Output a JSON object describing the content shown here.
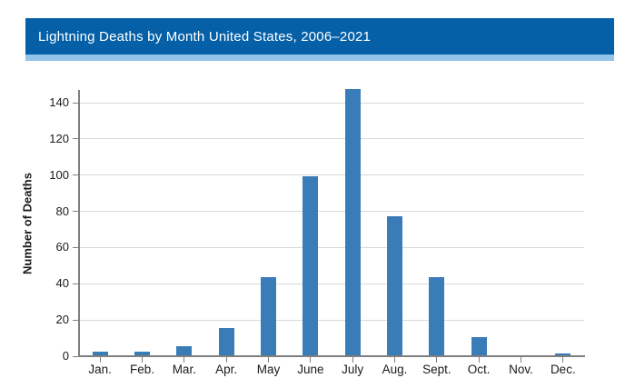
{
  "header": {
    "title": "Lightning Deaths by Month United States, 2006–2021"
  },
  "colors": {
    "header_bg": "#0560a8",
    "header_stripe": "#92c5e8",
    "title_text": "#ffffff",
    "bar_fill": "#3a7cb8",
    "gridline": "#d9d9d9",
    "axis": "#7f7f7f",
    "tick_label": "#1a1a1a"
  },
  "chart_data": {
    "type": "bar",
    "title": "Lightning Deaths by Month United States, 2006–2021",
    "categories": [
      "Jan.",
      "Feb.",
      "Mar.",
      "Apr.",
      "May",
      "June",
      "July",
      "Aug.",
      "Sept.",
      "Oct.",
      "Nov.",
      "Dec."
    ],
    "values": [
      2,
      2,
      5,
      15,
      43,
      99,
      147,
      77,
      43,
      10,
      0,
      1
    ],
    "xlabel": "",
    "ylabel": "Number of Deaths",
    "ylim": [
      0,
      147
    ],
    "yticks": [
      0,
      20,
      40,
      60,
      80,
      100,
      120,
      140
    ],
    "grid": true,
    "legend": false
  }
}
